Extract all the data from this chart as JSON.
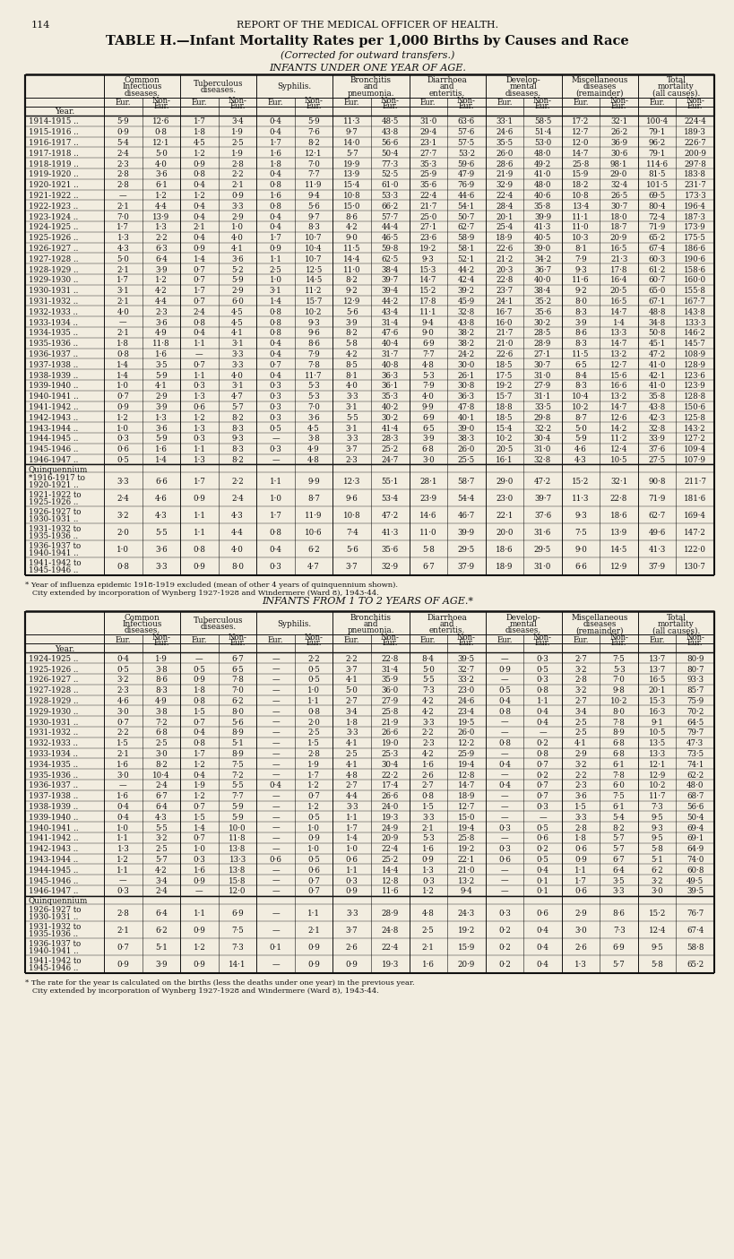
{
  "page_num": "114",
  "header": "REPORT OF THE MEDICAL OFFICER OF HEALTH.",
  "title": "TABLE H.—Infant Mortality Rates per 1,000 Births by Causes and Race",
  "subtitle": "(Corrected for outward transfers.)",
  "section1_title": "INFANTS UNDER ONE YEAR OF AGE.",
  "section2_title": "INFANTS FROM 1 TO 2 YEARS OF AGE.*",
  "col_label_lines": [
    [
      "Common",
      "Infectious",
      "diseases."
    ],
    [
      "Tuberculous",
      "diseases."
    ],
    [
      "Syphilis."
    ],
    [
      "Bronchitis",
      "and",
      "pneumonia."
    ],
    [
      "Diarrhoea",
      "and",
      "enteritis."
    ],
    [
      "Develop-",
      "mental",
      "diseases."
    ],
    [
      "Miscellaneous",
      "diseases",
      "(remainder)"
    ],
    [
      "Total",
      "mortality",
      "(all causes)."
    ]
  ],
  "table1_years": [
    "1914-1915 ..",
    "1915-1916 ..",
    "1916-1917 ..",
    "1917-1918 ..",
    "1918-1919 ..",
    "1919-1920 ..",
    "1920-1921 ..",
    "1921-1922 ..",
    "1922-1923 ..",
    "1923-1924 ..",
    "1924-1925 ..",
    "1925-1926 ..",
    "1926-1927 ..",
    "1927-1928 ..",
    "1928-1929 ..",
    "1929-1930 ..",
    "1930-1931 ..",
    "1931-1932 ..",
    "1932-1933 ..",
    "1933-1934 ..",
    "1934-1935 ..",
    "1935-1936 ..",
    "1936-1937 ..",
    "1937-1938 ..",
    "1938-1939 ..",
    "1939-1940 ..",
    "1940-1941 ..",
    "1941-1942 ..",
    "1942-1943 ..",
    "1943-1944 ..",
    "1944-1945 ..",
    "1945-1946 ..",
    "1946-1947 .."
  ],
  "table1_data": [
    [
      "5·9",
      "12·6",
      "1·7",
      "3·4",
      "0·4",
      "5·9",
      "11·3",
      "48·5",
      "31·0",
      "63·6",
      "33·1",
      "58·5",
      "17·2",
      "32·1",
      "100·4",
      "224·4"
    ],
    [
      "0·9",
      "0·8",
      "1·8",
      "1·9",
      "0·4",
      "7·6",
      "9·7",
      "43·8",
      "29·4",
      "57·6",
      "24·6",
      "51·4",
      "12·7",
      "26·2",
      "79·1",
      "189·3"
    ],
    [
      "5·4",
      "12·1",
      "4·5",
      "2·5",
      "1·7",
      "8·2",
      "14·0",
      "56·6",
      "23·1",
      "57·5",
      "35·5",
      "53·0",
      "12·0",
      "36·9",
      "96·2",
      "226·7"
    ],
    [
      "2·4",
      "5·0",
      "1·2",
      "1·9",
      "1·6",
      "12·1",
      "5·7",
      "50·4",
      "27·7",
      "53·2",
      "26·0",
      "48·0",
      "14·7",
      "30·6",
      "79·1",
      "200·9"
    ],
    [
      "2·3",
      "4·0",
      "0·9",
      "2·8",
      "1·8",
      "7·0",
      "19·9",
      "77·3",
      "35·3",
      "59·6",
      "28·6",
      "49·2",
      "25·8",
      "98·1",
      "114·6",
      "297·8"
    ],
    [
      "2·8",
      "3·6",
      "0·8",
      "2·2",
      "0·4",
      "7·7",
      "13·9",
      "52·5",
      "25·9",
      "47·9",
      "21·9",
      "41·0",
      "15·9",
      "29·0",
      "81·5",
      "183·8"
    ],
    [
      "2·8",
      "6·1",
      "0·4",
      "2·1",
      "0·8",
      "11·9",
      "15·4",
      "61·0",
      "35·6",
      "76·9",
      "32·9",
      "48·0",
      "18·2",
      "32·4",
      "101·5",
      "231·7"
    ],
    [
      "—",
      "1·2",
      "1·2",
      "0·9",
      "1·6",
      "9·4",
      "10·8",
      "53·3",
      "22·4",
      "44·6",
      "22·4",
      "40·6",
      "10·8",
      "26·5",
      "69·5",
      "173·3"
    ],
    [
      "2·1",
      "4·4",
      "0·4",
      "3·3",
      "0·8",
      "5·6",
      "15·0",
      "66·2",
      "21·7",
      "54·1",
      "28·4",
      "35·8",
      "13·4",
      "30·7",
      "80·4",
      "196·4"
    ],
    [
      "7·0",
      "13·9",
      "0·4",
      "2·9",
      "0·4",
      "9·7",
      "8·6",
      "57·7",
      "25·0",
      "50·7",
      "20·1",
      "39·9",
      "11·1",
      "18·0",
      "72·4",
      "187·3"
    ],
    [
      "1·7",
      "1·3",
      "2·1",
      "1·0",
      "0·4",
      "8·3",
      "4·2",
      "44·4",
      "27·1",
      "62·7",
      "25·4",
      "41·3",
      "11·0",
      "18·7",
      "71·9",
      "173·9"
    ],
    [
      "1·3",
      "2·2",
      "0·4",
      "4·0",
      "1·7",
      "10·7",
      "9·0",
      "46·5",
      "23·6",
      "58·9",
      "18·9",
      "40·5",
      "10·3",
      "20·9",
      "65·2",
      "175·5"
    ],
    [
      "4·3",
      "6·3",
      "0·9",
      "4·1",
      "0·9",
      "10·4",
      "11·5",
      "59·8",
      "19·2",
      "58·1",
      "22·6",
      "39·0",
      "8·1",
      "16·5",
      "67·4",
      "186·6"
    ],
    [
      "5·0",
      "6·4",
      "1·4",
      "3·6",
      "1·1",
      "10·7",
      "14·4",
      "62·5",
      "9·3",
      "52·1",
      "21·2",
      "34·2",
      "7·9",
      "21·3",
      "60·3",
      "190·6"
    ],
    [
      "2·1",
      "3·9",
      "0·7",
      "5·2",
      "2·5",
      "12·5",
      "11·0",
      "38·4",
      "15·3",
      "44·2",
      "20·3",
      "36·7",
      "9·3",
      "17·8",
      "61·2",
      "158·6"
    ],
    [
      "1·7",
      "1·2",
      "0·7",
      "5·9",
      "1·0",
      "14·5",
      "8·2",
      "39·7",
      "14·7",
      "42·4",
      "22·8",
      "40·0",
      "11·6",
      "16·4",
      "60·7",
      "160·0"
    ],
    [
      "3·1",
      "4·2",
      "1·7",
      "2·9",
      "3·1",
      "11·2",
      "9·2",
      "39·4",
      "15·2",
      "39·2",
      "23·7",
      "38·4",
      "9·2",
      "20·5",
      "65·0",
      "155·8"
    ],
    [
      "2·1",
      "4·4",
      "0·7",
      "6·0",
      "1·4",
      "15·7",
      "12·9",
      "44·2",
      "17·8",
      "45·9",
      "24·1",
      "35·2",
      "8·0",
      "16·5",
      "67·1",
      "167·7"
    ],
    [
      "4·0",
      "2·3",
      "2·4",
      "4·5",
      "0·8",
      "10·2",
      "5·6",
      "43·4",
      "11·1",
      "32·8",
      "16·7",
      "35·6",
      "8·3",
      "14·7",
      "48·8",
      "143·8"
    ],
    [
      "—",
      "3·6",
      "0·8",
      "4·5",
      "0·8",
      "9·3",
      "3·9",
      "31·4",
      "9·4",
      "43·8",
      "16·0",
      "30·2",
      "3·9",
      "1·4",
      "34·8",
      "133·3"
    ],
    [
      "2·1",
      "4·9",
      "0·4",
      "4·1",
      "0·8",
      "9·6",
      "8·2",
      "47·6",
      "9·0",
      "38·2",
      "21·7",
      "28·5",
      "8·6",
      "13·3",
      "50·8",
      "146·2"
    ],
    [
      "1·8",
      "11·8",
      "1·1",
      "3·1",
      "0·4",
      "8·6",
      "5·8",
      "40·4",
      "6·9",
      "38·2",
      "21·0",
      "28·9",
      "8·3",
      "14·7",
      "45·1",
      "145·7"
    ],
    [
      "0·8",
      "1·6",
      "—",
      "3·3",
      "0·4",
      "7·9",
      "4·2",
      "31·7",
      "7·7",
      "24·2",
      "22·6",
      "27·1",
      "11·5",
      "13·2",
      "47·2",
      "108·9"
    ],
    [
      "1·4",
      "3·5",
      "0·7",
      "3·3",
      "0·7",
      "7·8",
      "8·5",
      "40·8",
      "4·8",
      "30·0",
      "18·5",
      "30·7",
      "6·5",
      "12·7",
      "41·0",
      "128·9"
    ],
    [
      "1·4",
      "5·9",
      "1·1",
      "4·0",
      "0·4",
      "11·7",
      "8·1",
      "36·3",
      "5·3",
      "26·1",
      "17·5",
      "31·0",
      "8·4",
      "15·6",
      "42·1",
      "123·6"
    ],
    [
      "1·0",
      "4·1",
      "0·3",
      "3·1",
      "0·3",
      "5·3",
      "4·0",
      "36·1",
      "7·9",
      "30·8",
      "19·2",
      "27·9",
      "8·3",
      "16·6",
      "41·0",
      "123·9"
    ],
    [
      "0·7",
      "2·9",
      "1·3",
      "4·7",
      "0·3",
      "5·3",
      "3·3",
      "35·3",
      "4·0",
      "36·3",
      "15·7",
      "31·1",
      "10·4",
      "13·2",
      "35·8",
      "128·8"
    ],
    [
      "0·9",
      "3·9",
      "0·6",
      "5·7",
      "0·3",
      "7·0",
      "3·1",
      "40·2",
      "9·9",
      "47·8",
      "18·8",
      "33·5",
      "10·2",
      "14·7",
      "43·8",
      "150·6"
    ],
    [
      "1·2",
      "1·3",
      "1·2",
      "8·2",
      "0·3",
      "3·6",
      "5·5",
      "30·2",
      "6·9",
      "40·1",
      "18·5",
      "29·8",
      "8·7",
      "12·6",
      "42·3",
      "125·8"
    ],
    [
      "1·0",
      "3·6",
      "1·3",
      "8·3",
      "0·5",
      "4·5",
      "3·1",
      "41·4",
      "6·5",
      "39·0",
      "15·4",
      "32·2",
      "5·0",
      "14·2",
      "32·8",
      "143·2"
    ],
    [
      "0·3",
      "5·9",
      "0·3",
      "9·3",
      "—",
      "3·8",
      "3·3",
      "28·3",
      "3·9",
      "38·3",
      "10·2",
      "30·4",
      "5·9",
      "11·2",
      "33·9",
      "127·2"
    ],
    [
      "0·6",
      "1·6",
      "1·1",
      "8·3",
      "0·3",
      "4·9",
      "3·7",
      "25·2",
      "6·8",
      "26·0",
      "20·5",
      "31·0",
      "4·6",
      "12·4",
      "37·6",
      "109·4"
    ],
    [
      "0·5",
      "1·4",
      "1·3",
      "8·2",
      "—",
      "4·8",
      "2·3",
      "24·7",
      "3·0",
      "25·5",
      "16·1",
      "32·8",
      "4·3",
      "10·5",
      "27·5",
      "107·9"
    ]
  ],
  "quinq1_label_lines": [
    [
      "*1916-1917 to",
      "1920-1921 .."
    ],
    [
      "1921-1922 to",
      "1925-1926 .."
    ],
    [
      "1926-1927 to",
      "1930-1931 .."
    ],
    [
      "1931-1932 to",
      "1935-1936 .."
    ],
    [
      "1936-1937 to",
      "1940-1941 .."
    ],
    [
      "1941-1942 to",
      "1945-1946 .."
    ]
  ],
  "quinq1_data": [
    [
      "3·3",
      "6·6",
      "1·7",
      "2·2",
      "1·1",
      "9·9",
      "12·3",
      "55·1",
      "28·1",
      "58·7",
      "29·0",
      "47·2",
      "15·2",
      "32·1",
      "90·8",
      "211·7"
    ],
    [
      "2·4",
      "4·6",
      "0·9",
      "2·4",
      "1·0",
      "8·7",
      "9·6",
      "53·4",
      "23·9",
      "54·4",
      "23·0",
      "39·7",
      "11·3",
      "22·8",
      "71·9",
      "181·6"
    ],
    [
      "3·2",
      "4·3",
      "1·1",
      "4·3",
      "1·7",
      "11·9",
      "10·8",
      "47·2",
      "14·6",
      "46·7",
      "22·1",
      "37·6",
      "9·3",
      "18·6",
      "62·7",
      "169·4"
    ],
    [
      "2·0",
      "5·5",
      "1·1",
      "4·4",
      "0·8",
      "10·6",
      "7·4",
      "41·3",
      "11·0",
      "39·9",
      "20·0",
      "31·6",
      "7·5",
      "13·9",
      "49·6",
      "147·2"
    ],
    [
      "1·0",
      "3·6",
      "0·8",
      "4·0",
      "0·4",
      "6·2",
      "5·6",
      "35·6",
      "5·8",
      "29·5",
      "18·6",
      "29·5",
      "9·0",
      "14·5",
      "41·3",
      "122·0"
    ],
    [
      "0·8",
      "3·3",
      "0·9",
      "8·0",
      "0·3",
      "4·7",
      "3·7",
      "32·9",
      "6·7",
      "37·9",
      "18·9",
      "31·0",
      "6·6",
      "12·9",
      "37·9",
      "130·7"
    ]
  ],
  "footnote1": "* Year of influenza epidemic 1918-1919 excluded (mean of other 4 years of quinquennium shown).",
  "footnote2": "   City extended by incorporation of Wynberg 1927-1928 and Windermere (Ward 8), 1943-44.",
  "table2_years": [
    "1924-1925 ..",
    "1925-1926 ..",
    "1926-1927 ..",
    "1927-1928 ..",
    "1928-1929 ..",
    "1929-1930 ..",
    "1930-1931 ..",
    "1931-1932 ..",
    "1932-1933 ..",
    "1933-1934 ..",
    "1934-1935 ..",
    "1935-1936 ..",
    "1936-1937 ..",
    "1937-1938 ..",
    "1938-1939 ..",
    "1939-1940 ..",
    "1940-1941 ..",
    "1941-1942 ..",
    "1942-1943 ..",
    "1943-1944 ..",
    "1944-1945 ..",
    "1945-1946 ..",
    "1946-1947 .."
  ],
  "table2_data": [
    [
      "0·4",
      "1·9",
      "—",
      "6·7",
      "—",
      "2·2",
      "2·2",
      "22·8",
      "8·4",
      "39·5",
      "—",
      "0·3",
      "2·7",
      "7·5",
      "13·7",
      "80·9"
    ],
    [
      "0·5",
      "3·8",
      "0·5",
      "6·5",
      "—",
      "0·5",
      "3·7",
      "31·4",
      "5·0",
      "32·7",
      "0·9",
      "0·5",
      "3·2",
      "5·3",
      "13·7",
      "80·7"
    ],
    [
      "3·2",
      "8·6",
      "0·9",
      "7·8",
      "—",
      "0·5",
      "4·1",
      "35·9",
      "5·5",
      "33·2",
      "—",
      "0·3",
      "2·8",
      "7·0",
      "16·5",
      "93·3"
    ],
    [
      "2·3",
      "8·3",
      "1·8",
      "7·0",
      "—",
      "1·0",
      "5·0",
      "36·0",
      "7·3",
      "23·0",
      "0·5",
      "0·8",
      "3·2",
      "9·8",
      "20·1",
      "85·7"
    ],
    [
      "4·6",
      "4·9",
      "0·8",
      "6·2",
      "—",
      "1·1",
      "2·7",
      "27·9",
      "4·2",
      "24·6",
      "0·4",
      "1·1",
      "2·7",
      "10·2",
      "15·3",
      "75·9"
    ],
    [
      "3·0",
      "3·8",
      "1·5",
      "8·0",
      "—",
      "0·8",
      "3·4",
      "25·8",
      "4·2",
      "23·4",
      "0·8",
      "0·4",
      "3·4",
      "8·0",
      "16·3",
      "70·2"
    ],
    [
      "0·7",
      "7·2",
      "0·7",
      "5·6",
      "—",
      "2·0",
      "1·8",
      "21·9",
      "3·3",
      "19·5",
      "—",
      "0·4",
      "2·5",
      "7·8",
      "9·1",
      "64·5"
    ],
    [
      "2·2",
      "6·8",
      "0·4",
      "8·9",
      "—",
      "2·5",
      "3·3",
      "26·6",
      "2·2",
      "26·0",
      "—",
      "—",
      "2·5",
      "8·9",
      "10·5",
      "79·7"
    ],
    [
      "1·5",
      "2·5",
      "0·8",
      "5·1",
      "—",
      "1·5",
      "4·1",
      "19·0",
      "2·3",
      "12·2",
      "0·8",
      "0·2",
      "4·1",
      "6·8",
      "13·5",
      "47·3"
    ],
    [
      "2·1",
      "3·0",
      "1·7",
      "8·9",
      "—",
      "2·8",
      "2·5",
      "25·3",
      "4·2",
      "25·9",
      "—",
      "0·8",
      "2·9",
      "6·8",
      "13·3",
      "73·5"
    ],
    [
      "1·6",
      "8·2",
      "1·2",
      "7·5",
      "—",
      "1·9",
      "4·1",
      "30·4",
      "1·6",
      "19·4",
      "0·4",
      "0·7",
      "3·2",
      "6·1",
      "12·1",
      "74·1"
    ],
    [
      "3·0",
      "10·4",
      "0·4",
      "7·2",
      "—",
      "1·7",
      "4·8",
      "22·2",
      "2·6",
      "12·8",
      "—",
      "0·2",
      "2·2",
      "7·8",
      "12·9",
      "62·2"
    ],
    [
      "—",
      "2·4",
      "1·9",
      "5·5",
      "0·4",
      "1·2",
      "2·7",
      "17·4",
      "2·7",
      "14·7",
      "0·4",
      "0·7",
      "2·3",
      "6·0",
      "10·2",
      "48·0"
    ],
    [
      "1·6",
      "6·7",
      "1·2",
      "7·7",
      "—",
      "0·7",
      "4·4",
      "26·6",
      "0·8",
      "18·9",
      "—",
      "0·7",
      "3·6",
      "7·5",
      "11·7",
      "68·7"
    ],
    [
      "0·4",
      "6·4",
      "0·7",
      "5·9",
      "—",
      "1·2",
      "3·3",
      "24·0",
      "1·5",
      "12·7",
      "—",
      "0·3",
      "1·5",
      "6·1",
      "7·3",
      "56·6"
    ],
    [
      "0·4",
      "4·3",
      "1·5",
      "5·9",
      "—",
      "0·5",
      "1·1",
      "19·3",
      "3·3",
      "15·0",
      "—",
      "—",
      "3·3",
      "5·4",
      "9·5",
      "50·4"
    ],
    [
      "1·0",
      "5·5",
      "1·4",
      "10·0",
      "—",
      "1·0",
      "1·7",
      "24·9",
      "2·1",
      "19·4",
      "0·3",
      "0·5",
      "2·8",
      "8·2",
      "9·3",
      "69·4"
    ],
    [
      "1·1",
      "3·2",
      "0·7",
      "11·8",
      "—",
      "0·9",
      "1·4",
      "20·9",
      "5·3",
      "25·8",
      "—",
      "0·6",
      "1·8",
      "5·7",
      "9·5",
      "69·1"
    ],
    [
      "1·3",
      "2·5",
      "1·0",
      "13·8",
      "—",
      "1·0",
      "1·0",
      "22·4",
      "1·6",
      "19·2",
      "0·3",
      "0·2",
      "0·6",
      "5·7",
      "5·8",
      "64·9"
    ],
    [
      "1·2",
      "5·7",
      "0·3",
      "13·3",
      "0·6",
      "0·5",
      "0·6",
      "25·2",
      "0·9",
      "22·1",
      "0·6",
      "0·5",
      "0·9",
      "6·7",
      "5·1",
      "74·0"
    ],
    [
      "1·1",
      "4·2",
      "1·6",
      "13·8",
      "—",
      "0·6",
      "1·1",
      "14·4",
      "1·3",
      "21·0",
      "—",
      "0·4",
      "1·1",
      "6·4",
      "6·2",
      "60·8"
    ],
    [
      "—",
      "3·4",
      "0·9",
      "15·8",
      "—",
      "0·7",
      "0·3",
      "12·8",
      "0·3",
      "13·2",
      "—",
      "0·1",
      "1·7",
      "3·5",
      "3·2",
      "49·5"
    ],
    [
      "0·3",
      "2·4",
      "—",
      "12·0",
      "—",
      "0·7",
      "0·9",
      "11·6",
      "1·2",
      "9·4",
      "—",
      "0·1",
      "0·6",
      "3·3",
      "3·0",
      "39·5"
    ]
  ],
  "quinq2_label_lines": [
    [
      "1926-1927 to",
      "1930-1931 .."
    ],
    [
      "1931-1932 to",
      "1935-1936 .."
    ],
    [
      "1936-1937 to",
      "1940-1941 .."
    ],
    [
      "1941-1942 to",
      "1945-1946 .."
    ]
  ],
  "quinq2_data": [
    [
      "2·8",
      "6·4",
      "1·1",
      "6·9",
      "—",
      "1·1",
      "3·3",
      "28·9",
      "4·8",
      "24·3",
      "0·3",
      "0·6",
      "2·9",
      "8·6",
      "15·2",
      "76·7"
    ],
    [
      "2·1",
      "6·2",
      "0·9",
      "7·5",
      "—",
      "2·1",
      "3·7",
      "24·8",
      "2·5",
      "19·2",
      "0·2",
      "0·4",
      "3·0",
      "7·3",
      "12·4",
      "67·4"
    ],
    [
      "0·7",
      "5·1",
      "1·2",
      "7·3",
      "0·1",
      "0·9",
      "2·6",
      "22·4",
      "2·1",
      "15·9",
      "0·2",
      "0·4",
      "2·6",
      "6·9",
      "9·5",
      "58·8"
    ],
    [
      "0·9",
      "3·9",
      "0·9",
      "14·1",
      "—",
      "0·9",
      "0·9",
      "19·3",
      "1·6",
      "20·9",
      "0·2",
      "0·4",
      "1·3",
      "5·7",
      "5·8",
      "65·2"
    ]
  ],
  "footnote3": "* The rate for the year is calculated on the births (less the deaths under one year) in the previous year.",
  "footnote4": "   City extended by incorporation of Wynberg 1927-1928 and Windermere (Ward 8), 1943-44.",
  "bg_color": "#f2ede0",
  "text_color": "#111111",
  "line_color": "#111111"
}
